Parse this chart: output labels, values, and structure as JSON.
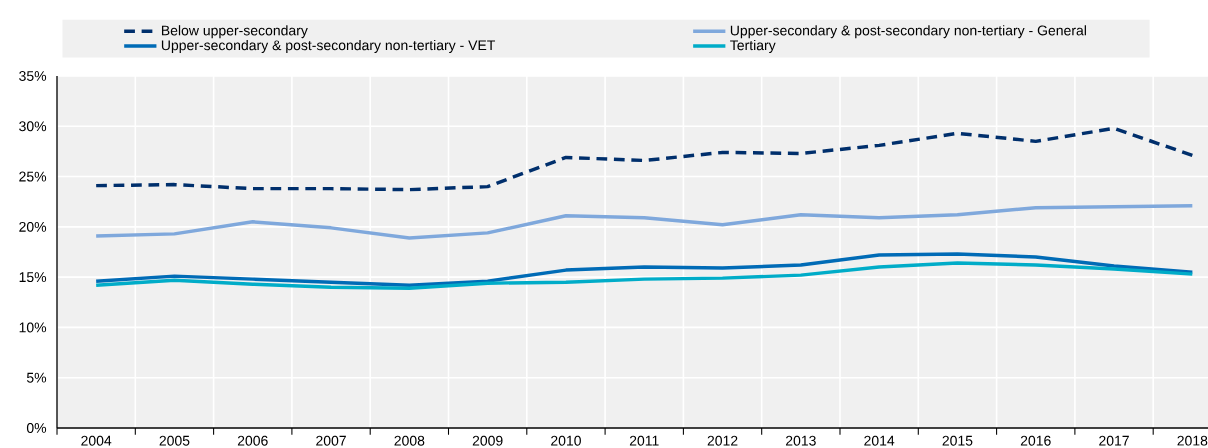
{
  "chart_data": {
    "type": "line",
    "categories": [
      "2004",
      "2005",
      "2006",
      "2007",
      "2008",
      "2009",
      "2010",
      "2011",
      "2012",
      "2013",
      "2014",
      "2015",
      "2016",
      "2017",
      "2018"
    ],
    "series": [
      {
        "name": "Below upper-secondary",
        "color": "#002f6c",
        "line_style": "dashed",
        "values": [
          24.1,
          24.2,
          23.8,
          23.8,
          23.7,
          24.0,
          26.9,
          26.6,
          27.4,
          27.3,
          28.1,
          29.3,
          28.5,
          29.8,
          27.1
        ]
      },
      {
        "name": "Upper-secondary & post-secondary non-tertiary - General",
        "color": "#7fa8dc",
        "line_style": "solid",
        "values": [
          19.1,
          19.3,
          20.5,
          19.9,
          18.9,
          19.4,
          21.1,
          20.9,
          20.2,
          21.2,
          20.9,
          21.2,
          21.9,
          22.0,
          22.1
        ]
      },
      {
        "name": "Upper-secondary & post-secondary non-tertiary - VET",
        "color": "#006bb6",
        "line_style": "solid",
        "values": [
          14.6,
          15.1,
          14.8,
          14.5,
          14.2,
          14.6,
          15.7,
          16.0,
          15.9,
          16.2,
          17.2,
          17.3,
          17.0,
          16.1,
          15.5
        ]
      },
      {
        "name": "Tertiary",
        "color": "#00acc8",
        "line_style": "solid",
        "values": [
          14.2,
          14.7,
          14.3,
          14.0,
          13.9,
          14.4,
          14.5,
          14.8,
          14.9,
          15.2,
          16.0,
          16.4,
          16.2,
          15.8,
          15.3
        ]
      }
    ],
    "ylim": [
      0,
      35
    ],
    "yticks": [
      {
        "value": 0,
        "label": "0%"
      },
      {
        "value": 5,
        "label": "5%"
      },
      {
        "value": 10,
        "label": "10%"
      },
      {
        "value": 15,
        "label": "15%"
      },
      {
        "value": 20,
        "label": "20%"
      },
      {
        "value": 25,
        "label": "25%"
      },
      {
        "value": 30,
        "label": "30%"
      },
      {
        "value": 35,
        "label": "35%"
      }
    ],
    "grid": true,
    "legend": "top"
  }
}
